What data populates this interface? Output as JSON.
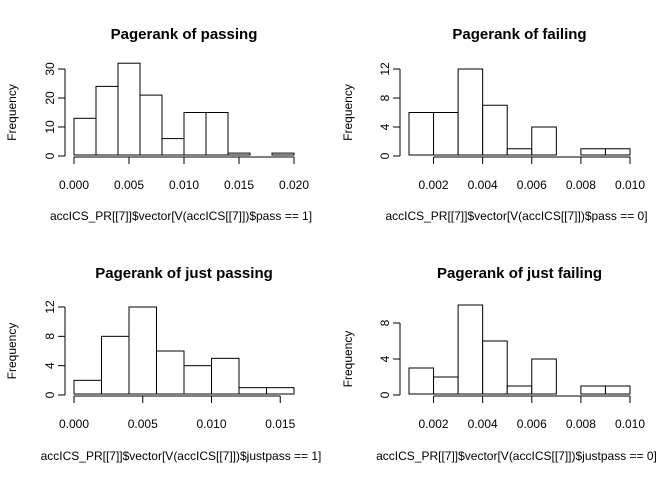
{
  "chart_data": [
    {
      "type": "bar",
      "title": "Pagerank of passing",
      "xlabel": "accICS_PR[[7]]$vector[V(accICS[[7]])$pass == 1]",
      "ylabel": "Frequency",
      "bin_start": 0.0,
      "bin_width": 0.002,
      "values": [
        13,
        24,
        32,
        21,
        6,
        15,
        15,
        1,
        0,
        1
      ],
      "xticks": [
        0.0,
        0.005,
        0.01,
        0.015,
        0.02
      ],
      "xtick_labels": [
        "0.000",
        "0.005",
        "0.010",
        "0.015",
        "0.020"
      ],
      "xlim": [
        0.0,
        0.02
      ],
      "yticks": [
        0,
        10,
        20,
        30
      ],
      "ylim": [
        0,
        32
      ]
    },
    {
      "type": "bar",
      "title": "Pagerank of failing",
      "xlabel": "accICS_PR[[7]]$vector[V(accICS[[7]])$pass == 0]",
      "ylabel": "Frequency",
      "bin_start": 0.001,
      "bin_width": 0.001,
      "values": [
        6,
        6,
        12,
        7,
        1,
        4,
        0,
        1,
        1
      ],
      "xticks": [
        0.002,
        0.004,
        0.006,
        0.008,
        0.01
      ],
      "xtick_labels": [
        "0.002",
        "0.004",
        "0.006",
        "0.008",
        "0.010"
      ],
      "xlim": [
        0.001,
        0.01
      ],
      "yticks": [
        0,
        4,
        8,
        12
      ],
      "ylim": [
        0,
        12
      ]
    },
    {
      "type": "bar",
      "title": "Pagerank of just passing",
      "xlabel": "accICS_PR[[7]]$vector[V(accICS[[7]])$justpass == 1]",
      "ylabel": "Frequency",
      "bin_start": 0.0,
      "bin_width": 0.002,
      "values": [
        2,
        8,
        12,
        6,
        4,
        5,
        1,
        1
      ],
      "xticks": [
        0.0,
        0.005,
        0.01,
        0.015
      ],
      "xtick_labels": [
        "0.000",
        "0.005",
        "0.010",
        "0.015"
      ],
      "xlim": [
        0.0,
        0.016
      ],
      "yticks": [
        0,
        4,
        8,
        12
      ],
      "ylim": [
        0,
        12
      ]
    },
    {
      "type": "bar",
      "title": "Pagerank of just failing",
      "xlabel": "accICS_PR[[7]]$vector[V(accICS[[7]])$justpass == 0]",
      "ylabel": "Frequency",
      "bin_start": 0.001,
      "bin_width": 0.001,
      "values": [
        3,
        2,
        10,
        6,
        1,
        4,
        0,
        1,
        1
      ],
      "xticks": [
        0.002,
        0.004,
        0.006,
        0.008,
        0.01
      ],
      "xtick_labels": [
        "0.002",
        "0.004",
        "0.006",
        "0.008",
        "0.010"
      ],
      "xlim": [
        0.001,
        0.01
      ],
      "yticks": [
        0,
        4,
        8
      ],
      "ylim": [
        0,
        10
      ]
    }
  ]
}
